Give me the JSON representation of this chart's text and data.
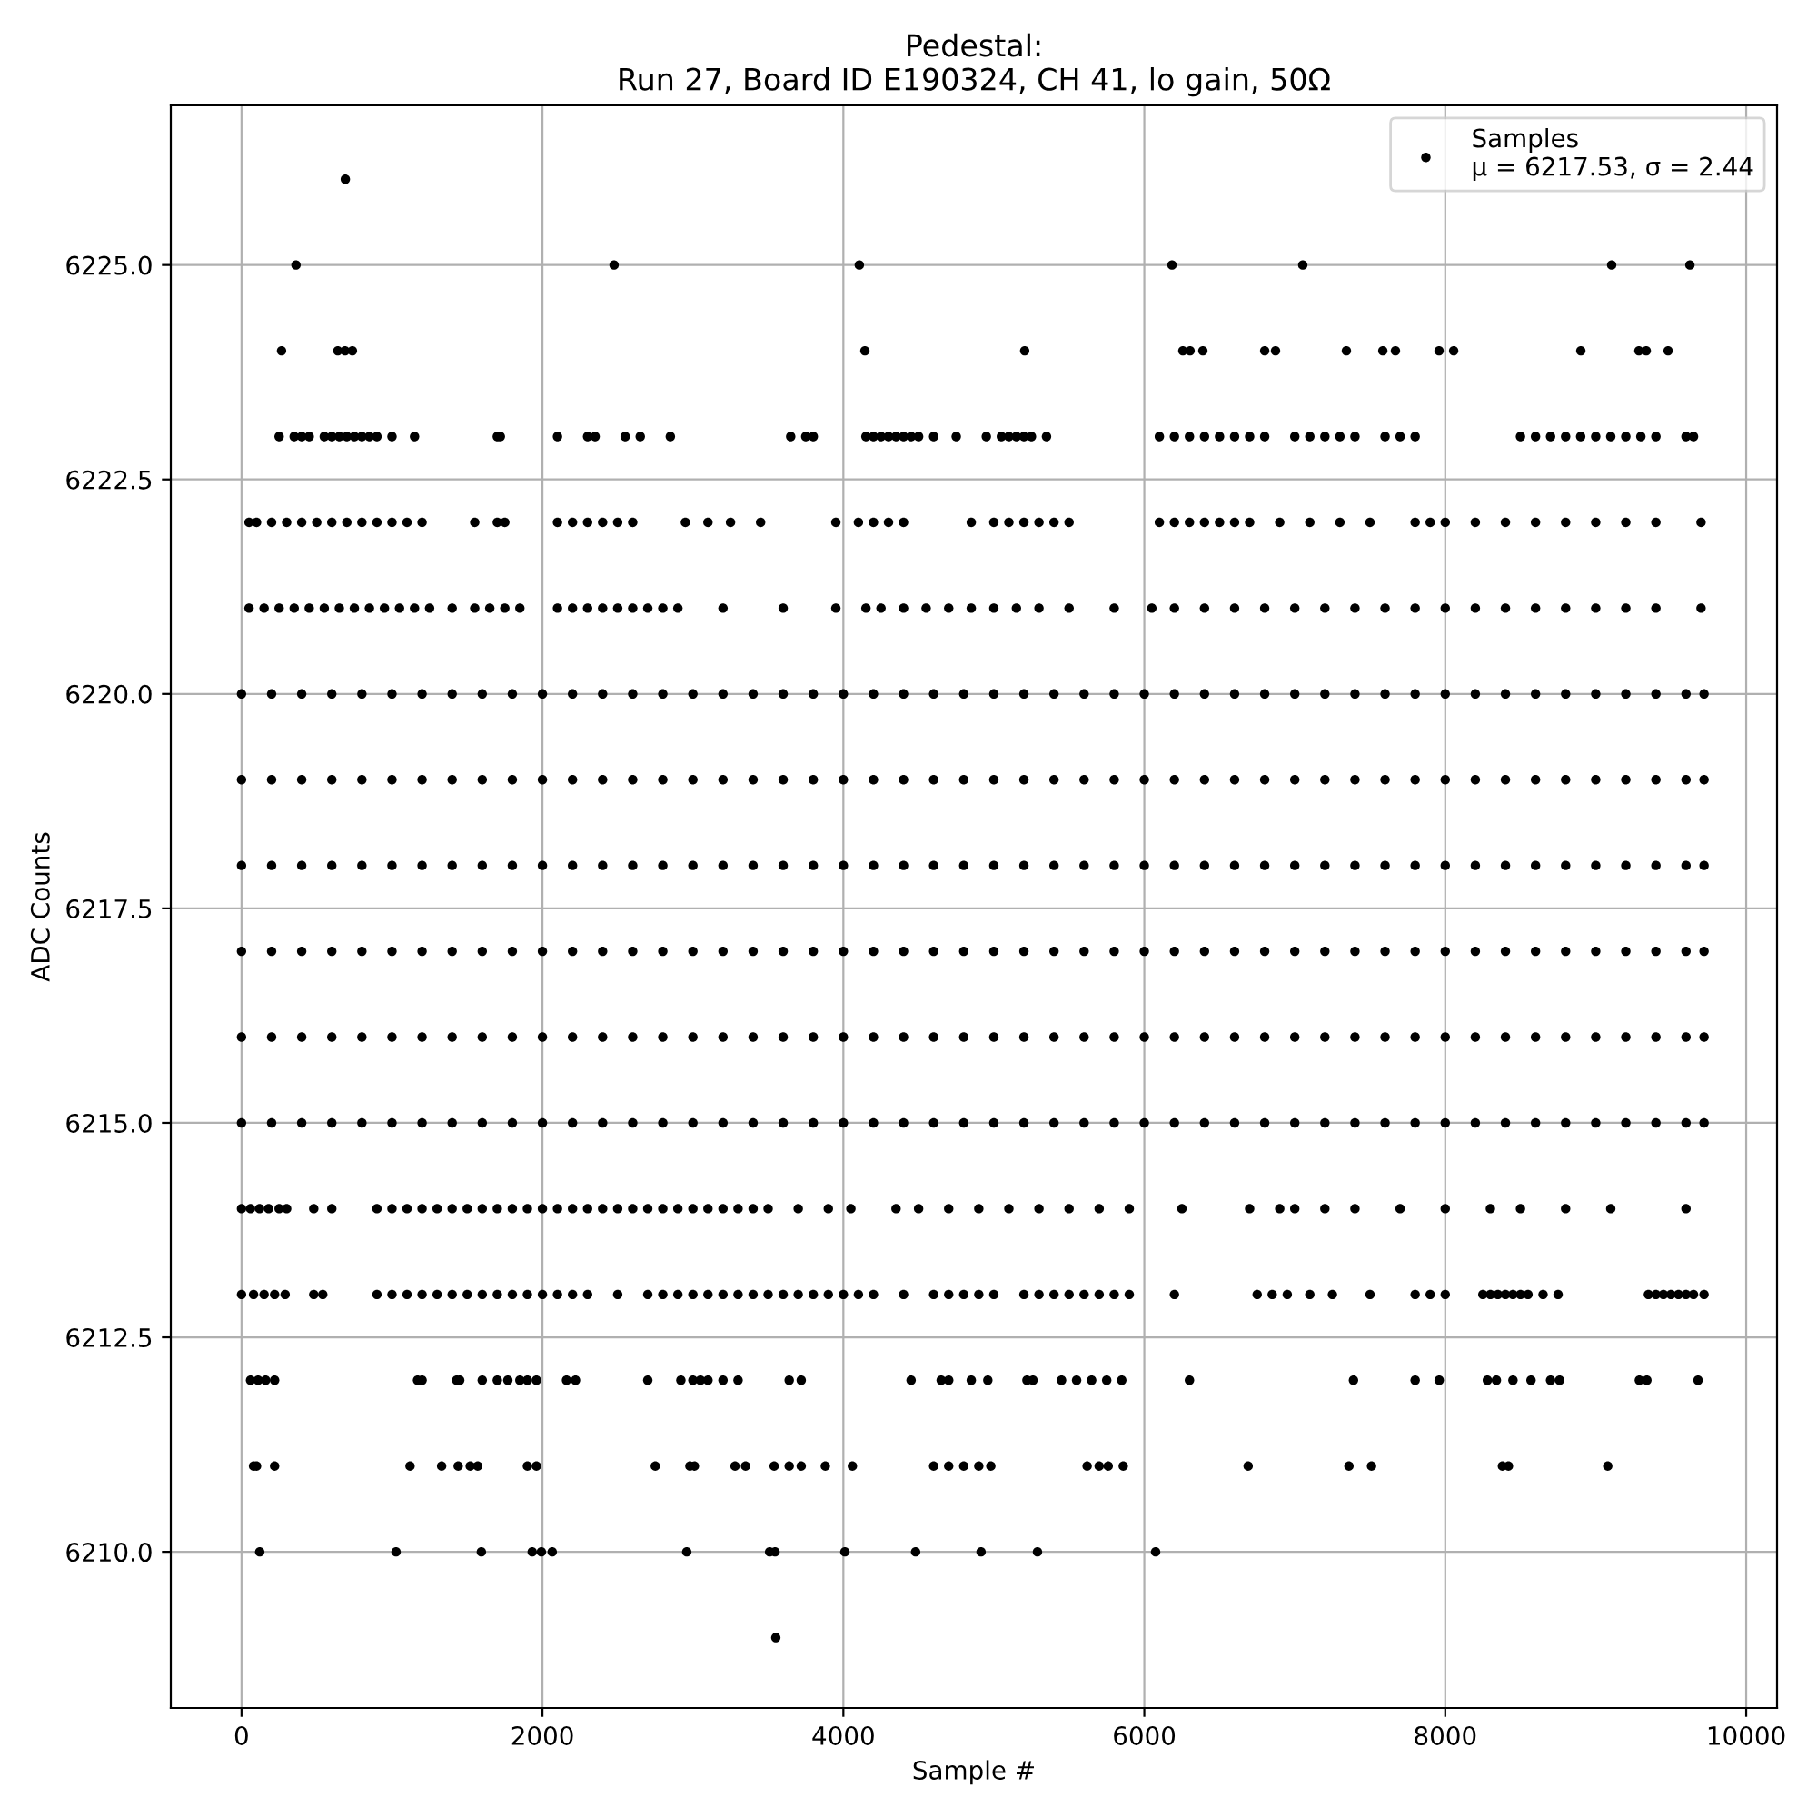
{
  "chart_data": {
    "type": "scatter",
    "title": "Pedestal:\nRun 27, Board ID E190324, CH 41, lo gain, 50Ω",
    "xlabel": "Sample #",
    "ylabel": "ADC Counts",
    "xlim": [
      -470,
      10205
    ],
    "xticks": [
      0,
      2000,
      4000,
      6000,
      8000,
      10000
    ],
    "ylim": [
      6208.18,
      6226.86
    ],
    "yticks": [
      {
        "value": 6210,
        "label": "6210.0"
      },
      {
        "value": 6212.5,
        "label": "6212.5"
      },
      {
        "value": 6215,
        "label": "6215.0"
      },
      {
        "value": 6217.5,
        "label": "6217.5"
      },
      {
        "value": 6220,
        "label": "6220.0"
      },
      {
        "value": 6222.5,
        "label": "6222.5"
      },
      {
        "value": 6225,
        "label": "6225.0"
      }
    ],
    "grid": true,
    "legend": "top right",
    "marker": "circle",
    "series": [
      {
        "name": "Samples\nμ = 6217.53, σ = 2.44",
        "color": "#000000",
        "x": [
          690,
          362,
          2476,
          4106,
          6184,
          7053,
          9106,
          9626,
          266,
          640,
          688,
          737,
          4143,
          5205,
          6256,
          6304,
          6389,
          6800,
          6872,
          7343,
          7585,
          7669,
          7959,
          8056,
          8901,
          9287,
          9336,
          9481,
          250,
          350,
          400,
          450,
          550,
          600,
          650,
          700,
          750,
          800,
          850,
          900,
          1000,
          1150,
          1700,
          1720,
          2100,
          2300,
          2350,
          2550,
          2650,
          2850,
          3650,
          3750,
          3800,
          4200,
          4250,
          4300,
          4350,
          4400,
          4450,
          4500,
          4600,
          4750,
          4950,
          5050,
          5100,
          5150,
          5200,
          5250,
          5350,
          6100,
          6200,
          6300,
          6400,
          6500,
          6600,
          6700,
          6800,
          7000,
          7100,
          7200,
          7300,
          7400,
          7600,
          7700,
          7800,
          8500,
          8600,
          8700,
          8800,
          8900,
          9000,
          9100,
          9200,
          9300,
          9400,
          9600,
          9650,
          4150,
          50,
          100,
          200,
          300,
          400,
          500,
          600,
          700,
          800,
          900,
          1000,
          1100,
          1200,
          1550,
          1700,
          1750,
          2100,
          2200,
          2300,
          2400,
          2500,
          2600,
          2950,
          3100,
          3250,
          3450,
          3950,
          4100,
          4200,
          4300,
          4400,
          4850,
          5000,
          5100,
          5200,
          5300,
          5400,
          5500,
          6100,
          6200,
          6300,
          6400,
          6500,
          6600,
          6700,
          6900,
          7100,
          7300,
          7500,
          7800,
          7900,
          8000,
          8200,
          8400,
          8600,
          8800,
          9000,
          9200,
          9400,
          9700,
          50,
          150,
          250,
          350,
          450,
          550,
          650,
          750,
          850,
          950,
          1050,
          1150,
          1250,
          1400,
          1550,
          1650,
          1750,
          1850,
          2100,
          2200,
          2300,
          2400,
          2500,
          2600,
          2700,
          2800,
          2900,
          3200,
          3600,
          3950,
          4150,
          4250,
          4400,
          4550,
          4700,
          4850,
          5000,
          5150,
          5300,
          5500,
          5800,
          6050,
          6200,
          6400,
          6600,
          6800,
          7000,
          7200,
          7400,
          7600,
          7800,
          8000,
          8200,
          8400,
          8600,
          8800,
          9000,
          9200,
          9400,
          9700,
          0,
          200,
          400,
          600,
          800,
          1000,
          1200,
          1400,
          1600,
          1800,
          2000,
          2200,
          2400,
          2600,
          2800,
          3000,
          3200,
          3400,
          3600,
          3800,
          4000,
          4200,
          4400,
          4600,
          4800,
          5000,
          5200,
          5400,
          5600,
          5800,
          6000,
          6200,
          6400,
          6600,
          6800,
          7000,
          7200,
          7400,
          7600,
          7800,
          8000,
          8200,
          8400,
          8600,
          8800,
          9000,
          9200,
          9400,
          9600,
          9720,
          0,
          200,
          400,
          600,
          800,
          1000,
          1200,
          1400,
          1600,
          1800,
          2000,
          2200,
          2400,
          2600,
          2800,
          3000,
          3200,
          3400,
          3600,
          3800,
          4000,
          4200,
          4400,
          4600,
          4800,
          5000,
          5200,
          5400,
          5600,
          5800,
          6000,
          6200,
          6400,
          6600,
          6800,
          7000,
          7200,
          7400,
          7600,
          7800,
          8000,
          8200,
          8400,
          8600,
          8800,
          9000,
          9200,
          9400,
          9600,
          9720,
          0,
          200,
          400,
          600,
          800,
          1000,
          1200,
          1400,
          1600,
          1800,
          2000,
          2200,
          2400,
          2600,
          2800,
          3000,
          3200,
          3400,
          3600,
          3800,
          4000,
          4200,
          4400,
          4600,
          4800,
          5000,
          5200,
          5400,
          5600,
          5800,
          6000,
          6200,
          6400,
          6600,
          6800,
          7000,
          7200,
          7400,
          7600,
          7800,
          8000,
          8200,
          8400,
          8600,
          8800,
          9000,
          9200,
          9400,
          9600,
          9720,
          0,
          200,
          400,
          600,
          800,
          1000,
          1200,
          1400,
          1600,
          1800,
          2000,
          2200,
          2400,
          2600,
          2800,
          3000,
          3200,
          3400,
          3600,
          3800,
          4000,
          4200,
          4400,
          4600,
          4800,
          5000,
          5200,
          5400,
          5600,
          5800,
          6000,
          6200,
          6400,
          6600,
          6800,
          7000,
          7200,
          7400,
          7600,
          7800,
          8000,
          8200,
          8400,
          8600,
          8800,
          9000,
          9200,
          9400,
          9600,
          9720,
          0,
          200,
          400,
          600,
          800,
          1000,
          1200,
          1400,
          1600,
          1800,
          2000,
          2200,
          2400,
          2600,
          2800,
          3000,
          3200,
          3400,
          3600,
          3800,
          4000,
          4200,
          4400,
          4600,
          4800,
          5000,
          5200,
          5400,
          5600,
          5800,
          6000,
          6200,
          6400,
          6600,
          6800,
          7000,
          7200,
          7400,
          7600,
          7800,
          8000,
          8200,
          8400,
          8600,
          8800,
          9000,
          9200,
          9400,
          9600,
          9720,
          0,
          200,
          400,
          600,
          800,
          1000,
          1200,
          1400,
          1600,
          1800,
          2000,
          2200,
          2400,
          2600,
          2800,
          3000,
          3200,
          3400,
          3600,
          3800,
          4000,
          4200,
          4400,
          4600,
          4800,
          5000,
          5200,
          5400,
          5600,
          5800,
          6000,
          6200,
          6400,
          6600,
          6800,
          7000,
          7200,
          7400,
          7600,
          7800,
          8000,
          8200,
          8400,
          8600,
          8800,
          9000,
          9200,
          9400,
          9600,
          9720,
          0,
          60,
          120,
          180,
          250,
          300,
          480,
          600,
          900,
          1000,
          1100,
          1200,
          1300,
          1400,
          1500,
          1600,
          1700,
          1800,
          1900,
          2000,
          2100,
          2200,
          2300,
          2400,
          2500,
          2600,
          2700,
          2800,
          2900,
          3000,
          3100,
          3200,
          3300,
          3400,
          3500,
          3700,
          3900,
          4050,
          4350,
          4500,
          4700,
          4900,
          5100,
          5300,
          5500,
          5700,
          5900,
          6250,
          6700,
          6900,
          7000,
          7200,
          7400,
          7700,
          8000,
          8300,
          8500,
          8800,
          9100,
          9600,
          0,
          80,
          150,
          220,
          290,
          480,
          540,
          900,
          1000,
          1100,
          1200,
          1300,
          1400,
          1500,
          1600,
          1700,
          1800,
          1900,
          2000,
          2100,
          2200,
          2300,
          2500,
          2700,
          2800,
          2900,
          3000,
          3100,
          3200,
          3300,
          3400,
          3500,
          3600,
          3700,
          3800,
          3900,
          4000,
          4100,
          4200,
          4400,
          4600,
          4700,
          4800,
          4900,
          5000,
          5200,
          5300,
          5400,
          5500,
          5600,
          5700,
          5800,
          5900,
          6200,
          6750,
          6850,
          6950,
          7100,
          7250,
          7500,
          7800,
          7900,
          8000,
          8250,
          8350,
          8450,
          8500,
          8650,
          8750,
          9350,
          9450,
          9550,
          9650,
          9720,
          9400,
          9500,
          9600,
          8300,
          8400,
          8550,
          60,
          110,
          160,
          220,
          1170,
          1200,
          1430,
          1450,
          1600,
          1700,
          1770,
          1850,
          1900,
          1960,
          2160,
          2220,
          2700,
          2920,
          3000,
          3050,
          3100,
          3200,
          3300,
          3640,
          3720,
          4450,
          4650,
          4700,
          4850,
          4960,
          5220,
          5260,
          5450,
          5550,
          5650,
          5750,
          5850,
          6300,
          7390,
          7800,
          7960,
          8280,
          8340,
          8450,
          8570,
          8700,
          8760,
          9290,
          9340,
          9680,
          80,
          100,
          220,
          1120,
          1330,
          1440,
          1520,
          1570,
          1900,
          1960,
          2750,
          2980,
          3010,
          3280,
          3350,
          3540,
          3640,
          3720,
          3880,
          4060,
          4600,
          4700,
          4800,
          4900,
          4980,
          5620,
          5700,
          5760,
          5860,
          6690,
          7360,
          7510,
          8380,
          8420,
          9080,
          121,
          1027,
          1594,
          1932,
          1993,
          2065,
          2959,
          3510,
          3546,
          4010,
          4480,
          4915,
          5290,
          6075,
          3551
        ],
        "values": [
          6226,
          6225,
          6225,
          6225,
          6225,
          6225,
          6225,
          6225,
          6224,
          6224,
          6224,
          6224,
          6224,
          6224,
          6224,
          6224,
          6224,
          6224,
          6224,
          6224,
          6224,
          6224,
          6224,
          6224,
          6224,
          6224,
          6224,
          6224,
          6223,
          6223,
          6223,
          6223,
          6223,
          6223,
          6223,
          6223,
          6223,
          6223,
          6223,
          6223,
          6223,
          6223,
          6223,
          6223,
          6223,
          6223,
          6223,
          6223,
          6223,
          6223,
          6223,
          6223,
          6223,
          6223,
          6223,
          6223,
          6223,
          6223,
          6223,
          6223,
          6223,
          6223,
          6223,
          6223,
          6223,
          6223,
          6223,
          6223,
          6223,
          6223,
          6223,
          6223,
          6223,
          6223,
          6223,
          6223,
          6223,
          6223,
          6223,
          6223,
          6223,
          6223,
          6223,
          6223,
          6223,
          6223,
          6223,
          6223,
          6223,
          6223,
          6223,
          6223,
          6223,
          6223,
          6223,
          6223,
          6223,
          6223,
          6222,
          6222,
          6222,
          6222,
          6222,
          6222,
          6222,
          6222,
          6222,
          6222,
          6222,
          6222,
          6222,
          6222,
          6222,
          6222,
          6222,
          6222,
          6222,
          6222,
          6222,
          6222,
          6222,
          6222,
          6222,
          6222,
          6222,
          6222,
          6222,
          6222,
          6222,
          6222,
          6222,
          6222,
          6222,
          6222,
          6222,
          6222,
          6222,
          6222,
          6222,
          6222,
          6222,
          6222,
          6222,
          6222,
          6222,
          6222,
          6222,
          6222,
          6222,
          6222,
          6222,
          6222,
          6222,
          6222,
          6222,
          6222,
          6222,
          6222,
          6221,
          6221,
          6221,
          6221,
          6221,
          6221,
          6221,
          6221,
          6221,
          6221,
          6221,
          6221,
          6221,
          6221,
          6221,
          6221,
          6221,
          6221,
          6221,
          6221,
          6221,
          6221,
          6221,
          6221,
          6221,
          6221,
          6221,
          6221,
          6221,
          6221,
          6221,
          6221,
          6221,
          6221,
          6221,
          6221,
          6221,
          6221,
          6221,
          6221,
          6221,
          6221,
          6221,
          6221,
          6221,
          6221,
          6221,
          6221,
          6221,
          6221,
          6221,
          6221,
          6221,
          6221,
          6221,
          6221,
          6221,
          6221,
          6221,
          6221,
          6220,
          6220,
          6220,
          6220,
          6220,
          6220,
          6220,
          6220,
          6220,
          6220,
          6220,
          6220,
          6220,
          6220,
          6220,
          6220,
          6220,
          6220,
          6220,
          6220,
          6220,
          6220,
          6220,
          6220,
          6220,
          6220,
          6220,
          6220,
          6220,
          6220,
          6220,
          6220,
          6220,
          6220,
          6220,
          6220,
          6220,
          6220,
          6220,
          6220,
          6220,
          6220,
          6220,
          6220,
          6220,
          6220,
          6220,
          6220,
          6220,
          6220,
          6219,
          6219,
          6219,
          6219,
          6219,
          6219,
          6219,
          6219,
          6219,
          6219,
          6219,
          6219,
          6219,
          6219,
          6219,
          6219,
          6219,
          6219,
          6219,
          6219,
          6219,
          6219,
          6219,
          6219,
          6219,
          6219,
          6219,
          6219,
          6219,
          6219,
          6219,
          6219,
          6219,
          6219,
          6219,
          6219,
          6219,
          6219,
          6219,
          6219,
          6219,
          6219,
          6219,
          6219,
          6219,
          6219,
          6219,
          6219,
          6219,
          6219,
          6218,
          6218,
          6218,
          6218,
          6218,
          6218,
          6218,
          6218,
          6218,
          6218,
          6218,
          6218,
          6218,
          6218,
          6218,
          6218,
          6218,
          6218,
          6218,
          6218,
          6218,
          6218,
          6218,
          6218,
          6218,
          6218,
          6218,
          6218,
          6218,
          6218,
          6218,
          6218,
          6218,
          6218,
          6218,
          6218,
          6218,
          6218,
          6218,
          6218,
          6218,
          6218,
          6218,
          6218,
          6218,
          6218,
          6218,
          6218,
          6218,
          6218,
          6217,
          6217,
          6217,
          6217,
          6217,
          6217,
          6217,
          6217,
          6217,
          6217,
          6217,
          6217,
          6217,
          6217,
          6217,
          6217,
          6217,
          6217,
          6217,
          6217,
          6217,
          6217,
          6217,
          6217,
          6217,
          6217,
          6217,
          6217,
          6217,
          6217,
          6217,
          6217,
          6217,
          6217,
          6217,
          6217,
          6217,
          6217,
          6217,
          6217,
          6217,
          6217,
          6217,
          6217,
          6217,
          6217,
          6217,
          6217,
          6217,
          6217,
          6216,
          6216,
          6216,
          6216,
          6216,
          6216,
          6216,
          6216,
          6216,
          6216,
          6216,
          6216,
          6216,
          6216,
          6216,
          6216,
          6216,
          6216,
          6216,
          6216,
          6216,
          6216,
          6216,
          6216,
          6216,
          6216,
          6216,
          6216,
          6216,
          6216,
          6216,
          6216,
          6216,
          6216,
          6216,
          6216,
          6216,
          6216,
          6216,
          6216,
          6216,
          6216,
          6216,
          6216,
          6216,
          6216,
          6216,
          6216,
          6216,
          6216,
          6215,
          6215,
          6215,
          6215,
          6215,
          6215,
          6215,
          6215,
          6215,
          6215,
          6215,
          6215,
          6215,
          6215,
          6215,
          6215,
          6215,
          6215,
          6215,
          6215,
          6215,
          6215,
          6215,
          6215,
          6215,
          6215,
          6215,
          6215,
          6215,
          6215,
          6215,
          6215,
          6215,
          6215,
          6215,
          6215,
          6215,
          6215,
          6215,
          6215,
          6215,
          6215,
          6215,
          6215,
          6215,
          6215,
          6215,
          6215,
          6215,
          6215,
          6214,
          6214,
          6214,
          6214,
          6214,
          6214,
          6214,
          6214,
          6214,
          6214,
          6214,
          6214,
          6214,
          6214,
          6214,
          6214,
          6214,
          6214,
          6214,
          6214,
          6214,
          6214,
          6214,
          6214,
          6214,
          6214,
          6214,
          6214,
          6214,
          6214,
          6214,
          6214,
          6214,
          6214,
          6214,
          6214,
          6214,
          6214,
          6214,
          6214,
          6214,
          6214,
          6214,
          6214,
          6214,
          6214,
          6214,
          6214,
          6214,
          6214,
          6214,
          6214,
          6214,
          6214,
          6214,
          6214,
          6214,
          6214,
          6214,
          6214,
          6213,
          6213,
          6213,
          6213,
          6213,
          6213,
          6213,
          6213,
          6213,
          6213,
          6213,
          6213,
          6213,
          6213,
          6213,
          6213,
          6213,
          6213,
          6213,
          6213,
          6213,
          6213,
          6213,
          6213,
          6213,
          6213,
          6213,
          6213,
          6213,
          6213,
          6213,
          6213,
          6213,
          6213,
          6213,
          6213,
          6213,
          6213,
          6213,
          6213,
          6213,
          6213,
          6213,
          6213,
          6213,
          6213,
          6213,
          6213,
          6213,
          6213,
          6213,
          6213,
          6213,
          6213,
          6213,
          6213,
          6213,
          6213,
          6213,
          6213,
          6213,
          6213,
          6213,
          6213,
          6213,
          6213,
          6213,
          6213,
          6213,
          6213,
          6213,
          6213,
          6213,
          6213,
          6213,
          6213,
          6213,
          6213,
          6213,
          6213,
          6212,
          6212,
          6212,
          6212,
          6212,
          6212,
          6212,
          6212,
          6212,
          6212,
          6212,
          6212,
          6212,
          6212,
          6212,
          6212,
          6212,
          6212,
          6212,
          6212,
          6212,
          6212,
          6212,
          6212,
          6212,
          6212,
          6212,
          6212,
          6212,
          6212,
          6212,
          6212,
          6212,
          6212,
          6212,
          6212,
          6212,
          6212,
          6212,
          6212,
          6212,
          6212,
          6212,
          6212,
          6212,
          6212,
          6212,
          6212,
          6212,
          6212,
          6211,
          6211,
          6211,
          6211,
          6211,
          6211,
          6211,
          6211,
          6211,
          6211,
          6211,
          6211,
          6211,
          6211,
          6211,
          6211,
          6211,
          6211,
          6211,
          6211,
          6211,
          6211,
          6211,
          6211,
          6211,
          6211,
          6211,
          6211,
          6211,
          6211,
          6211,
          6211,
          6211,
          6211,
          6211,
          6210,
          6210,
          6210,
          6210,
          6210,
          6210,
          6210,
          6210,
          6210,
          6210,
          6210,
          6210,
          6210,
          6210,
          6209
        ]
      }
    ]
  }
}
